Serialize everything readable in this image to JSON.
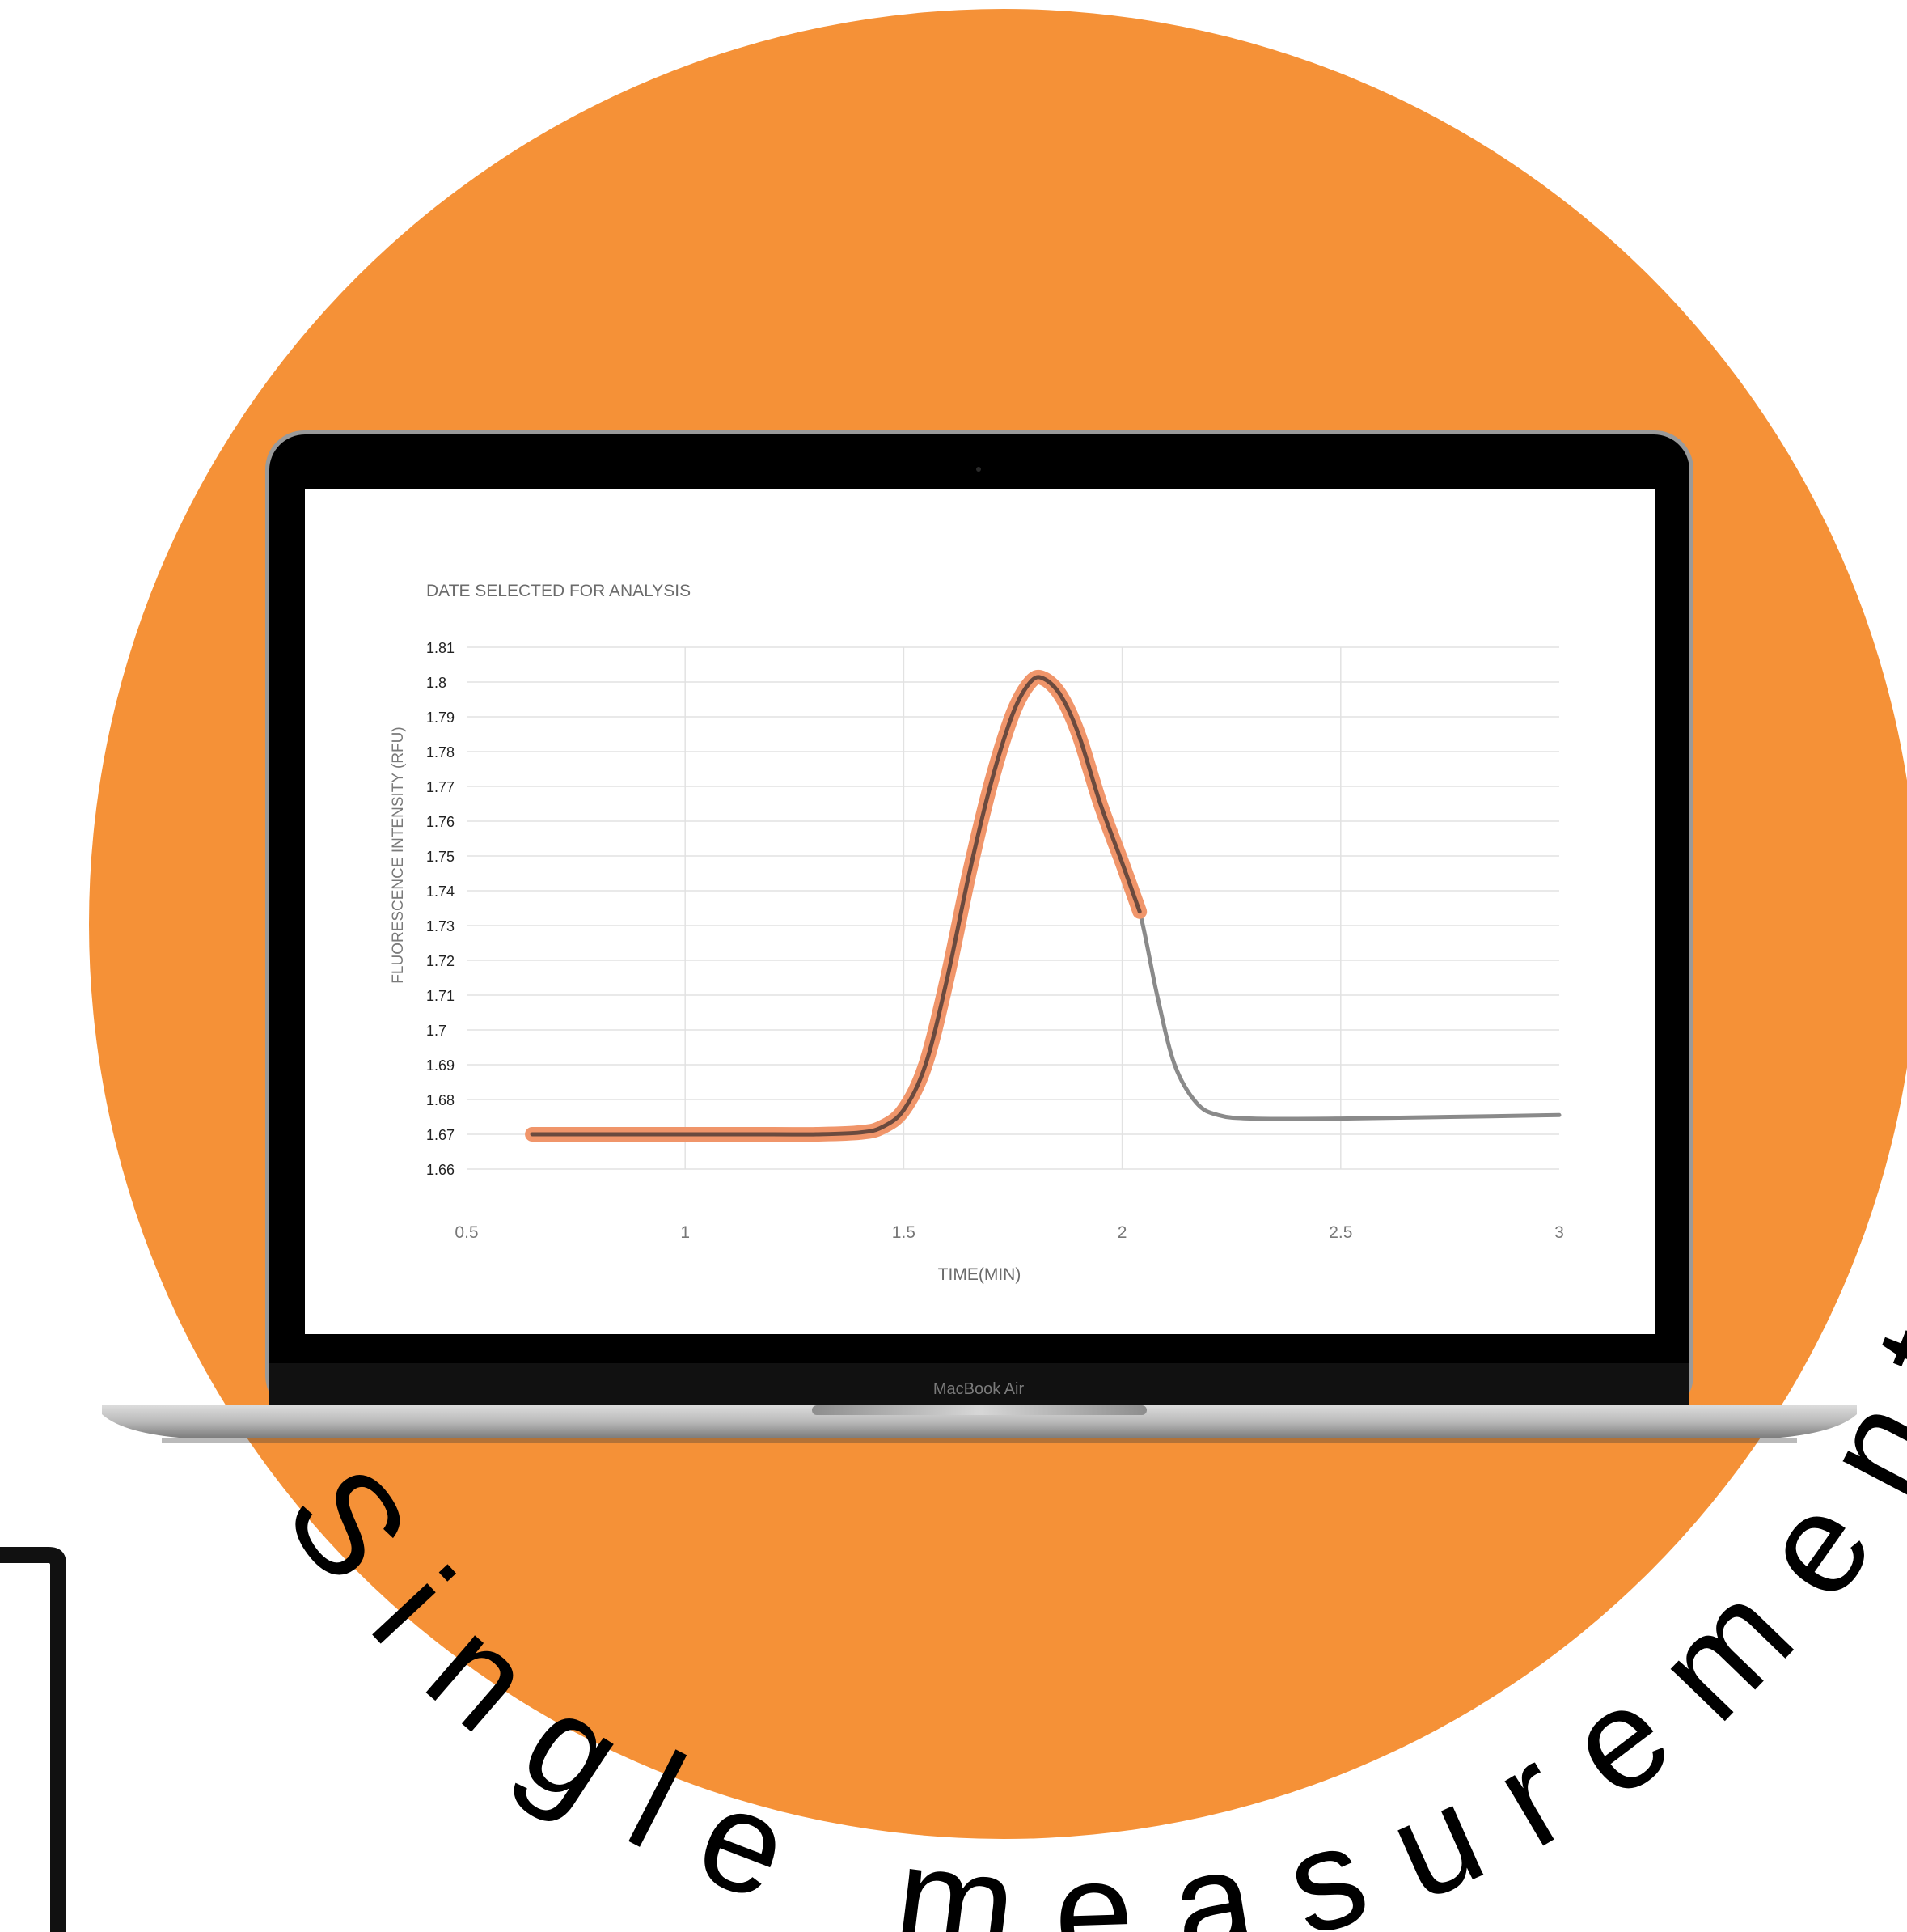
{
  "colors": {
    "accent_orange": "#F59137",
    "highlight_orange": "#F0956A",
    "curve_gray": "#8A8A8A",
    "curve_dark": "#6B4A3E",
    "bezel": "#000000",
    "screen_bg": "#FFFFFF",
    "grid": "#E2E2E2"
  },
  "device": {
    "label": "MacBook Air"
  },
  "curved_text": "Single measurement",
  "chart_data": {
    "type": "line",
    "title": "DATE SELECTED FOR ANALYSIS",
    "xlabel": "TIME(MIN)",
    "ylabel": "FLUORESCENCE INTENSITY (RFU)",
    "xlim": [
      0.5,
      3
    ],
    "ylim": [
      1.66,
      1.81
    ],
    "x_ticks": [
      "0.5",
      "1",
      "1.5",
      "2",
      "2.5",
      "3"
    ],
    "x_grid": [
      1,
      1.5,
      2,
      2.5
    ],
    "y_ticks": [
      "1.81",
      "1.8",
      "1.79",
      "1.78",
      "1.77",
      "1.76",
      "1.75",
      "1.74",
      "1.73",
      "1.72",
      "1.71",
      "1.7",
      "1.69",
      "1.68",
      "1.67",
      "1.66"
    ],
    "grid": true,
    "series": [
      {
        "role": "measurement",
        "points": [
          [
            0.65,
            1.67
          ],
          [
            0.8,
            1.67
          ],
          [
            1.0,
            1.67
          ],
          [
            1.2,
            1.67
          ],
          [
            1.3,
            1.67
          ],
          [
            1.4,
            1.6705
          ],
          [
            1.45,
            1.672
          ],
          [
            1.5,
            1.677
          ],
          [
            1.55,
            1.69
          ],
          [
            1.6,
            1.715
          ],
          [
            1.65,
            1.745
          ],
          [
            1.7,
            1.771
          ],
          [
            1.75,
            1.791
          ],
          [
            1.79,
            1.8
          ],
          [
            1.82,
            1.801
          ],
          [
            1.86,
            1.796
          ],
          [
            1.9,
            1.785
          ],
          [
            1.95,
            1.765
          ],
          [
            2.0,
            1.748
          ],
          [
            2.04,
            1.734
          ],
          [
            2.08,
            1.71
          ],
          [
            2.12,
            1.69
          ],
          [
            2.17,
            1.679
          ],
          [
            2.22,
            1.6755
          ],
          [
            2.3,
            1.6745
          ],
          [
            2.5,
            1.6745
          ],
          [
            2.75,
            1.675
          ],
          [
            3.0,
            1.6755
          ]
        ]
      },
      {
        "role": "selected-for-analysis",
        "x_range": [
          0.65,
          2.04
        ]
      }
    ]
  }
}
